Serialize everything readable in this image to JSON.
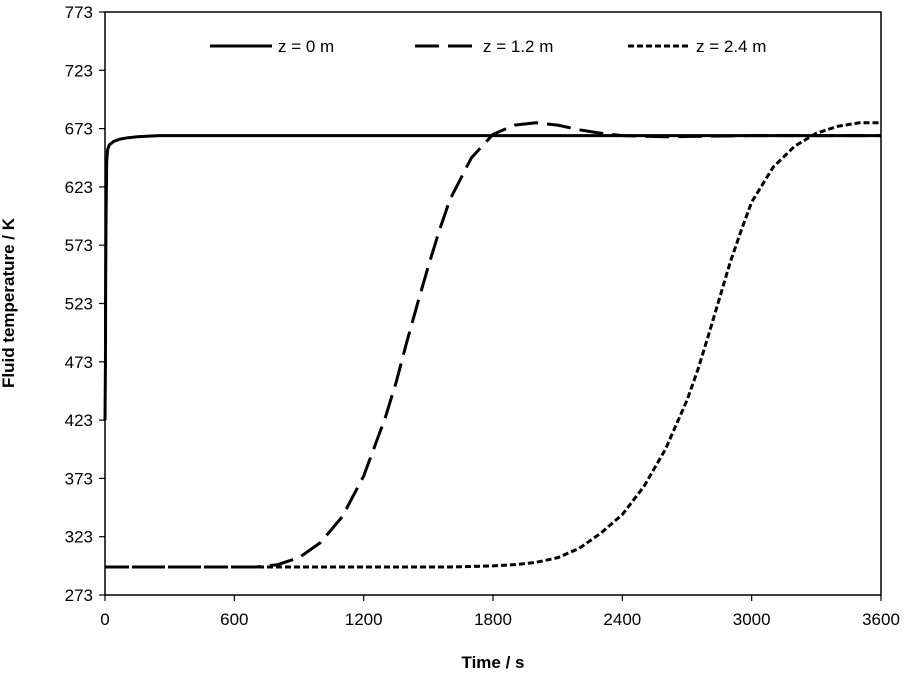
{
  "chart_data": {
    "type": "line",
    "title": "",
    "xlabel": "Time / s",
    "ylabel": "Fluid temperature / K",
    "xlim": [
      0,
      3600
    ],
    "ylim": [
      273,
      773
    ],
    "xticks": [
      "0",
      "600",
      "1200",
      "1800",
      "2400",
      "3000",
      "3600"
    ],
    "yticks": [
      "273",
      "323",
      "373",
      "423",
      "473",
      "523",
      "573",
      "623",
      "673",
      "723",
      "773"
    ],
    "grid": false,
    "legend_position": "top",
    "series": [
      {
        "name": "z = 0 m",
        "style": "solid",
        "points": [
          [
            0,
            423
          ],
          [
            2,
            470
          ],
          [
            3,
            540
          ],
          [
            5,
            600
          ],
          [
            8,
            645
          ],
          [
            12,
            655
          ],
          [
            20,
            659
          ],
          [
            40,
            662
          ],
          [
            70,
            664
          ],
          [
            100,
            665
          ],
          [
            150,
            666
          ],
          [
            250,
            667
          ],
          [
            600,
            667
          ],
          [
            1200,
            667
          ],
          [
            1800,
            667
          ],
          [
            2400,
            667
          ],
          [
            3000,
            667
          ],
          [
            3600,
            667
          ]
        ]
      },
      {
        "name": "z = 1.2 m",
        "style": "dashed",
        "points": [
          [
            0,
            297
          ],
          [
            500,
            297
          ],
          [
            700,
            297
          ],
          [
            800,
            299
          ],
          [
            900,
            305
          ],
          [
            1000,
            318
          ],
          [
            1100,
            340
          ],
          [
            1200,
            375
          ],
          [
            1300,
            425
          ],
          [
            1350,
            455
          ],
          [
            1400,
            490
          ],
          [
            1450,
            523
          ],
          [
            1500,
            555
          ],
          [
            1550,
            585
          ],
          [
            1600,
            612
          ],
          [
            1700,
            648
          ],
          [
            1800,
            668
          ],
          [
            1900,
            676
          ],
          [
            2000,
            678
          ],
          [
            2100,
            676
          ],
          [
            2200,
            672
          ],
          [
            2300,
            669
          ],
          [
            2400,
            667
          ],
          [
            2600,
            666
          ],
          [
            3000,
            667
          ],
          [
            3600,
            667
          ]
        ]
      },
      {
        "name": "z = 2.4 m",
        "style": "dotted",
        "points": [
          [
            0,
            297
          ],
          [
            1600,
            297
          ],
          [
            1800,
            298
          ],
          [
            1900,
            299
          ],
          [
            2000,
            301
          ],
          [
            2100,
            305
          ],
          [
            2200,
            313
          ],
          [
            2300,
            326
          ],
          [
            2400,
            342
          ],
          [
            2500,
            366
          ],
          [
            2600,
            398
          ],
          [
            2700,
            440
          ],
          [
            2750,
            466
          ],
          [
            2800,
            496
          ],
          [
            2850,
            527
          ],
          [
            2900,
            558
          ],
          [
            2950,
            585
          ],
          [
            3000,
            610
          ],
          [
            3100,
            640
          ],
          [
            3200,
            658
          ],
          [
            3300,
            669
          ],
          [
            3400,
            675
          ],
          [
            3500,
            678
          ],
          [
            3600,
            678
          ]
        ]
      }
    ]
  }
}
